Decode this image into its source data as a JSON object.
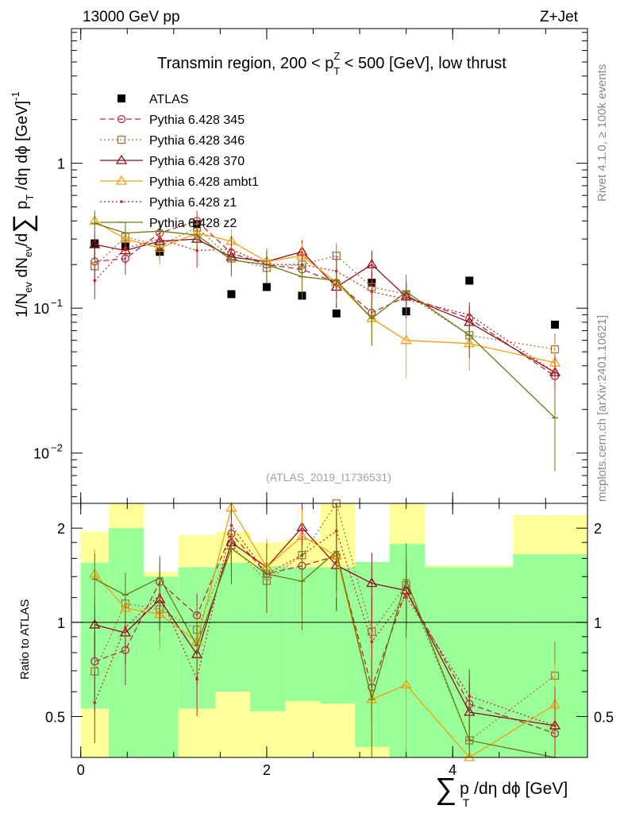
{
  "header": {
    "left": "13000 GeV pp",
    "right": "Z+Jet"
  },
  "side_labels": {
    "rivet": "Rivet 4.1.0, ≥ 100k events",
    "mcplots": "mcplots.cern.ch [arXiv:2401.10621]"
  },
  "colors": {
    "ATLAS": "#000000",
    "p345": "#b0303c",
    "p346": "#9c7840",
    "p370": "#8c1020",
    "ambt1": "#f0a010",
    "z1": "#d02020",
    "z2": "#6a7a10",
    "band_inner": "#99ff99",
    "band_outer": "#ffff99"
  },
  "chart_data": {
    "type": "line",
    "title": "Transmin region, 200 < pTZ < 500 [GeV], low thrust",
    "title_parts": {
      "pre": "Transmin region, 200 < p",
      "sup": "Z",
      "sub": "T",
      "post": " < 500 [GeV], low thrust"
    },
    "analysis_tag": "(ATLAS_2019_I1736531)",
    "xlabel": "∑ pT /dη dϕ [GeV]",
    "xlabel_parts": {
      "sum": "∑",
      "p": "p",
      "sub": "T",
      "rest": " /dη dϕ [GeV]"
    },
    "ylabel": "1/Nev dNev/d∑ pT /dη dϕ [GeV]^-1",
    "ylabel_parts": {
      "a": "1/N",
      "a_sub": "ev",
      "b": " dN",
      "b_sub": "ev",
      "c": "/d",
      "sum": "∑",
      "p": " p",
      "p_sub": "T",
      "d": " /dη dϕ  [GeV]",
      "sup": "-1"
    },
    "ratio_ylabel": "Ratio to ATLAS",
    "xlim": [
      -0.1,
      5.45
    ],
    "ylim": [
      0.0045,
      8.5
    ],
    "yscale": "log",
    "ratio_ylim": [
      0.37,
      2.4
    ],
    "x_ticks": [
      {
        "value": 0,
        "label": "0"
      },
      {
        "value": 2,
        "label": "2"
      },
      {
        "value": 4,
        "label": "4"
      }
    ],
    "y_ticks": [
      {
        "value": 1,
        "label": "1"
      },
      {
        "value": 0.1,
        "label": "10",
        "exp": "−1"
      },
      {
        "value": 0.01,
        "label": "10",
        "exp": "−2"
      }
    ],
    "ratio_ticks": [
      {
        "value": 0.5,
        "label": "0.5"
      },
      {
        "value": 1,
        "label": "1"
      },
      {
        "value": 2,
        "label": "2"
      }
    ],
    "x": [
      0.15,
      0.48,
      0.85,
      1.25,
      1.62,
      2.0,
      2.38,
      2.75,
      3.13,
      3.5,
      4.18,
      5.1
    ],
    "bins": [
      [
        0.0,
        0.3
      ],
      [
        0.3,
        0.68
      ],
      [
        0.68,
        1.05
      ],
      [
        1.05,
        1.45
      ],
      [
        1.45,
        1.82
      ],
      [
        1.82,
        2.2
      ],
      [
        2.2,
        2.58
      ],
      [
        2.58,
        2.95
      ],
      [
        2.95,
        3.32
      ],
      [
        3.32,
        3.7
      ],
      [
        3.7,
        4.65
      ],
      [
        4.65,
        5.5
      ]
    ],
    "band_inner": [
      [
        0.53,
        1.55
      ],
      [
        0.34,
        2.0
      ],
      [
        0.35,
        1.4
      ],
      [
        0.53,
        1.5
      ],
      [
        0.6,
        1.55
      ],
      [
        0.52,
        1.51
      ],
      [
        0.56,
        1.5
      ],
      [
        0.55,
        1.5
      ],
      [
        0.4,
        1.56
      ],
      [
        0.34,
        1.78
      ],
      [
        0.3,
        1.5
      ],
      [
        0.3,
        1.65
      ]
    ],
    "band_outer": [
      [
        0.36,
        1.95
      ],
      [
        0.34,
        2.5
      ],
      [
        0.34,
        1.45
      ],
      [
        0.34,
        1.9
      ],
      [
        0.34,
        1.95
      ],
      [
        0.34,
        1.8
      ],
      [
        0.34,
        1.85
      ],
      [
        0.34,
        2.5
      ],
      [
        0.34,
        1.52
      ],
      [
        0.34,
        2.5
      ],
      [
        0.34,
        1.52
      ],
      [
        0.34,
        2.2
      ]
    ],
    "series": [
      {
        "name": "ATLAS",
        "marker": "square",
        "color": "#000000",
        "line": "none",
        "values": [
          0.28,
          0.27,
          0.245,
          0.38,
          0.125,
          0.14,
          0.122,
          0.092,
          0.15,
          0.095,
          0.155,
          0.077
        ]
      },
      {
        "name": "Pythia 6.428 345",
        "marker": "circle",
        "color": "#b0303c",
        "line": "dashed",
        "values": [
          0.21,
          0.22,
          0.33,
          0.4,
          0.24,
          0.2,
          0.185,
          0.15,
          0.093,
          0.12,
          0.085,
          0.034
        ],
        "errors": [
          0.05,
          0.05,
          0.06,
          0.07,
          0.05,
          0.04,
          0.04,
          0.04,
          0.02,
          0.03,
          0.02,
          0.01
        ]
      },
      {
        "name": "Pythia 6.428 346",
        "marker": "square-open",
        "color": "#9c7840",
        "line": "dotted",
        "values": [
          0.195,
          0.31,
          0.27,
          0.36,
          0.22,
          0.19,
          0.2,
          0.23,
          0.14,
          0.125,
          0.065,
          0.052
        ],
        "errors": [
          0.05,
          0.06,
          0.06,
          0.07,
          0.05,
          0.04,
          0.05,
          0.05,
          0.04,
          0.03,
          0.02,
          0.015
        ]
      },
      {
        "name": "Pythia 6.428 370",
        "marker": "triangle",
        "color": "#8c1020",
        "line": "solid",
        "values": [
          0.275,
          0.25,
          0.29,
          0.3,
          0.225,
          0.21,
          0.245,
          0.14,
          0.2,
          0.12,
          0.08,
          0.036
        ],
        "errors": [
          0.06,
          0.05,
          0.06,
          0.06,
          0.05,
          0.04,
          0.05,
          0.04,
          0.05,
          0.03,
          0.02,
          0.012
        ]
      },
      {
        "name": "Pythia 6.428 ambt1",
        "marker": "triangle",
        "color": "#f0a010",
        "line": "solid",
        "values": [
          0.4,
          0.3,
          0.26,
          0.33,
          0.29,
          0.21,
          0.23,
          0.15,
          0.085,
          0.06,
          0.057,
          0.042
        ],
        "errors": [
          0.08,
          0.06,
          0.06,
          0.06,
          0.06,
          0.05,
          0.05,
          0.04,
          0.03,
          0.027,
          0.02,
          0.015
        ]
      },
      {
        "name": "Pythia 6.428 z1",
        "marker": "dot",
        "color": "#d02020",
        "line": "dotted",
        "values": [
          0.155,
          0.26,
          0.3,
          0.25,
          0.255,
          0.2,
          0.2,
          0.18,
          0.13,
          0.115,
          0.09,
          0.036
        ],
        "errors": [
          0.04,
          0.05,
          0.07,
          0.06,
          0.06,
          0.05,
          0.05,
          0.05,
          0.04,
          0.03,
          0.02,
          0.012
        ]
      },
      {
        "name": "Pythia 6.428 z2",
        "marker": "line",
        "color": "#6a7a10",
        "line": "solid",
        "values": [
          0.385,
          0.33,
          0.34,
          0.32,
          0.215,
          0.2,
          0.165,
          0.155,
          0.085,
          0.13,
          0.065,
          0.0175
        ],
        "errors": [
          0.08,
          0.06,
          0.06,
          0.06,
          0.05,
          0.04,
          0.05,
          0.04,
          0.03,
          0.04,
          0.02,
          0.01
        ]
      }
    ],
    "legend_position": "top-left"
  }
}
